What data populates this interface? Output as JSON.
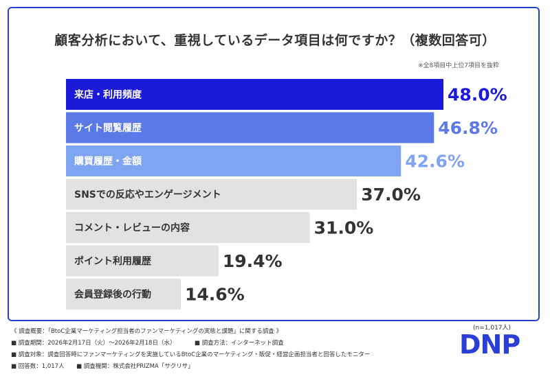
{
  "chart_data": {
    "type": "bar",
    "orientation": "horizontal",
    "title": "顧客分析において、重視しているデータ項目は何ですか？（複数回答可）",
    "note": "※全8項目中上位7項目を抜粋",
    "categories": [
      "来店・利用頻度",
      "サイト閲覧履歴",
      "購買履歴・金額",
      "SNSでの反応やエンゲージメント",
      "コメント・レビューの内容",
      "ポイント利用履歴",
      "会員登録後の行動"
    ],
    "values": [
      48.0,
      46.8,
      42.6,
      37.0,
      31.0,
      19.4,
      14.6
    ],
    "value_labels": [
      "48.0%",
      "46.8%",
      "42.6%",
      "37.0%",
      "31.0%",
      "19.4%",
      "14.6%"
    ],
    "bar_colors": [
      "#1a1ad8",
      "#5c79e8",
      "#7fa4f2",
      "#e2e2e2",
      "#e2e2e2",
      "#e2e2e2",
      "#e2e2e2"
    ],
    "label_colors": [
      "#ffffff",
      "#ffffff",
      "#ffffff",
      "#333333",
      "#333333",
      "#333333",
      "#333333"
    ],
    "value_colors": [
      "#1a1ad8",
      "#5c79e8",
      "#7fa4f2",
      "#333333",
      "#333333",
      "#333333",
      "#333333"
    ],
    "xlim": [
      0,
      48.0
    ]
  },
  "footer": {
    "overview": "《 調査概要：「BtoC企業マーケティング担当者のファンマーケティングの実態と課題」に関する調査 》",
    "period": "■ 調査期間：2026年2月17日（火）〜2026年2月18日（水）",
    "method": "■ 調査方法：インターネット調査",
    "target": "■ 調査対象：調査回答時にファンマーケティングを実施しているBtoC企業のマーケティング・販促・経営企画担当者と回答したモニター",
    "respondents": "■ 回答数：1,017人",
    "agency": "■ 調査機関：株式会社PRIZMA「サクリサ」",
    "sample": "(n=1,017人)",
    "logo": "DNP"
  }
}
